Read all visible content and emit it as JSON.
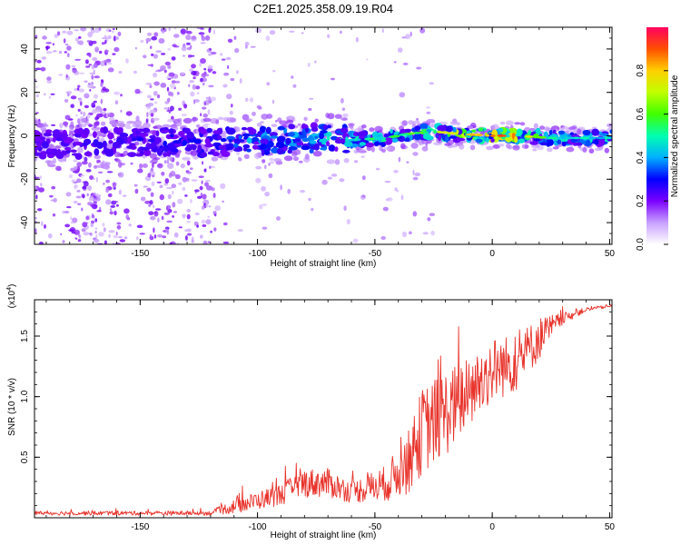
{
  "title": "C2E1.2025.358.09.19.R04",
  "chart_data": [
    {
      "type": "heatmap",
      "name": "spectrogram",
      "xlabel": "Height of straight line (km)",
      "ylabel": "Frequency (Hz)",
      "xlim": [
        -195,
        51
      ],
      "ylim": [
        -50,
        50
      ],
      "xticks": [
        -150,
        -100,
        -50,
        0,
        50
      ],
      "yticks": [
        -40,
        -20,
        0,
        20,
        40
      ],
      "colorbar": {
        "label": "Normalized spectral amplitude",
        "range": [
          0,
          1
        ],
        "ticks": [
          0.0,
          0.2,
          0.4,
          0.6,
          0.8
        ],
        "tick_labels": [
          "0.0",
          "0.2",
          "0.4",
          "0.6",
          "0.8"
        ]
      },
      "band": {
        "x": [
          -195,
          -150,
          -120,
          -100,
          -75,
          -60,
          -45,
          -35,
          -25,
          -15,
          0,
          10,
          25,
          51
        ],
        "center_hz": [
          -4,
          -3,
          -3,
          -2,
          -1,
          -2,
          -1,
          1,
          2,
          1,
          0,
          0,
          -1,
          -1
        ],
        "peak_amplitude": [
          0.25,
          0.3,
          0.35,
          0.45,
          0.5,
          0.55,
          0.6,
          0.65,
          0.7,
          0.8,
          0.95,
          0.95,
          0.55,
          0.5
        ]
      },
      "noise_columns_km": [
        -175,
        -165,
        -140,
        -125
      ]
    },
    {
      "type": "line",
      "name": "snr",
      "xlabel": "Height of straight line (km)",
      "ylabel": "SNR (10 * v/v)",
      "multiplier": "(x10",
      "multiplier_exp": "4",
      "multiplier_close": ")",
      "color": "#e8332b",
      "xlim": [
        -195,
        51
      ],
      "ylim": [
        0,
        1.8
      ],
      "xticks": [
        -150,
        -100,
        -50,
        0,
        50
      ],
      "yticks": [
        0.5,
        1.0,
        1.5
      ],
      "ytick_labels": [
        "0.5",
        "1.0",
        "1.5"
      ],
      "envelope": {
        "x": [
          -195,
          -120,
          -110,
          -90,
          -80,
          -70,
          -60,
          -45,
          -35,
          -30,
          -20,
          -10,
          0,
          10,
          20,
          30,
          40,
          51
        ],
        "y": [
          0.04,
          0.04,
          0.1,
          0.2,
          0.3,
          0.3,
          0.22,
          0.3,
          0.5,
          0.75,
          0.9,
          1.05,
          1.25,
          1.3,
          1.5,
          1.65,
          1.72,
          1.75
        ],
        "spike_amplitude": [
          0.03,
          0.03,
          0.1,
          0.15,
          0.2,
          0.2,
          0.15,
          0.25,
          0.45,
          0.6,
          0.6,
          0.5,
          0.45,
          0.4,
          0.3,
          0.08,
          0.03,
          0.02
        ]
      }
    }
  ]
}
